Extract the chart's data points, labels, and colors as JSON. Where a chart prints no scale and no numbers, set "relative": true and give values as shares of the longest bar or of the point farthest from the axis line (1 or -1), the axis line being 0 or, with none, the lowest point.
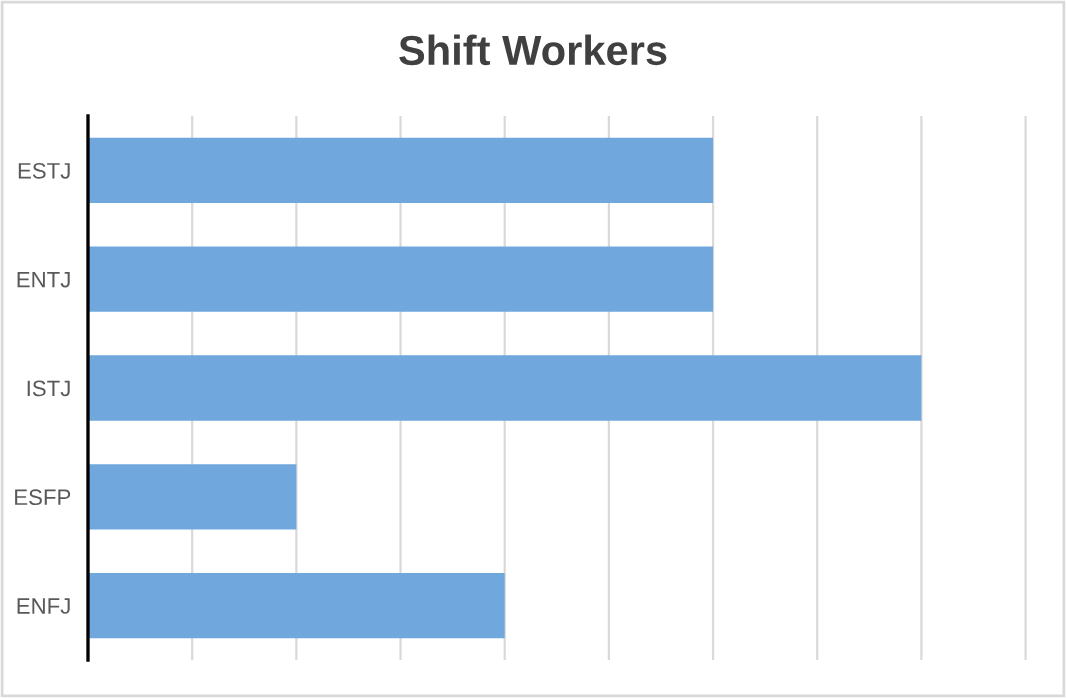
{
  "chart_data": {
    "type": "bar",
    "title": "Shift Workers",
    "orientation": "horizontal",
    "relative": true,
    "grid": "x",
    "categories": [
      "ESTJ",
      "ENTJ",
      "ISTJ",
      "ESFP",
      "ENFJ"
    ],
    "values": [
      0.75,
      0.75,
      1,
      0.25,
      0.5
    ],
    "color": "#70a7dc"
  }
}
